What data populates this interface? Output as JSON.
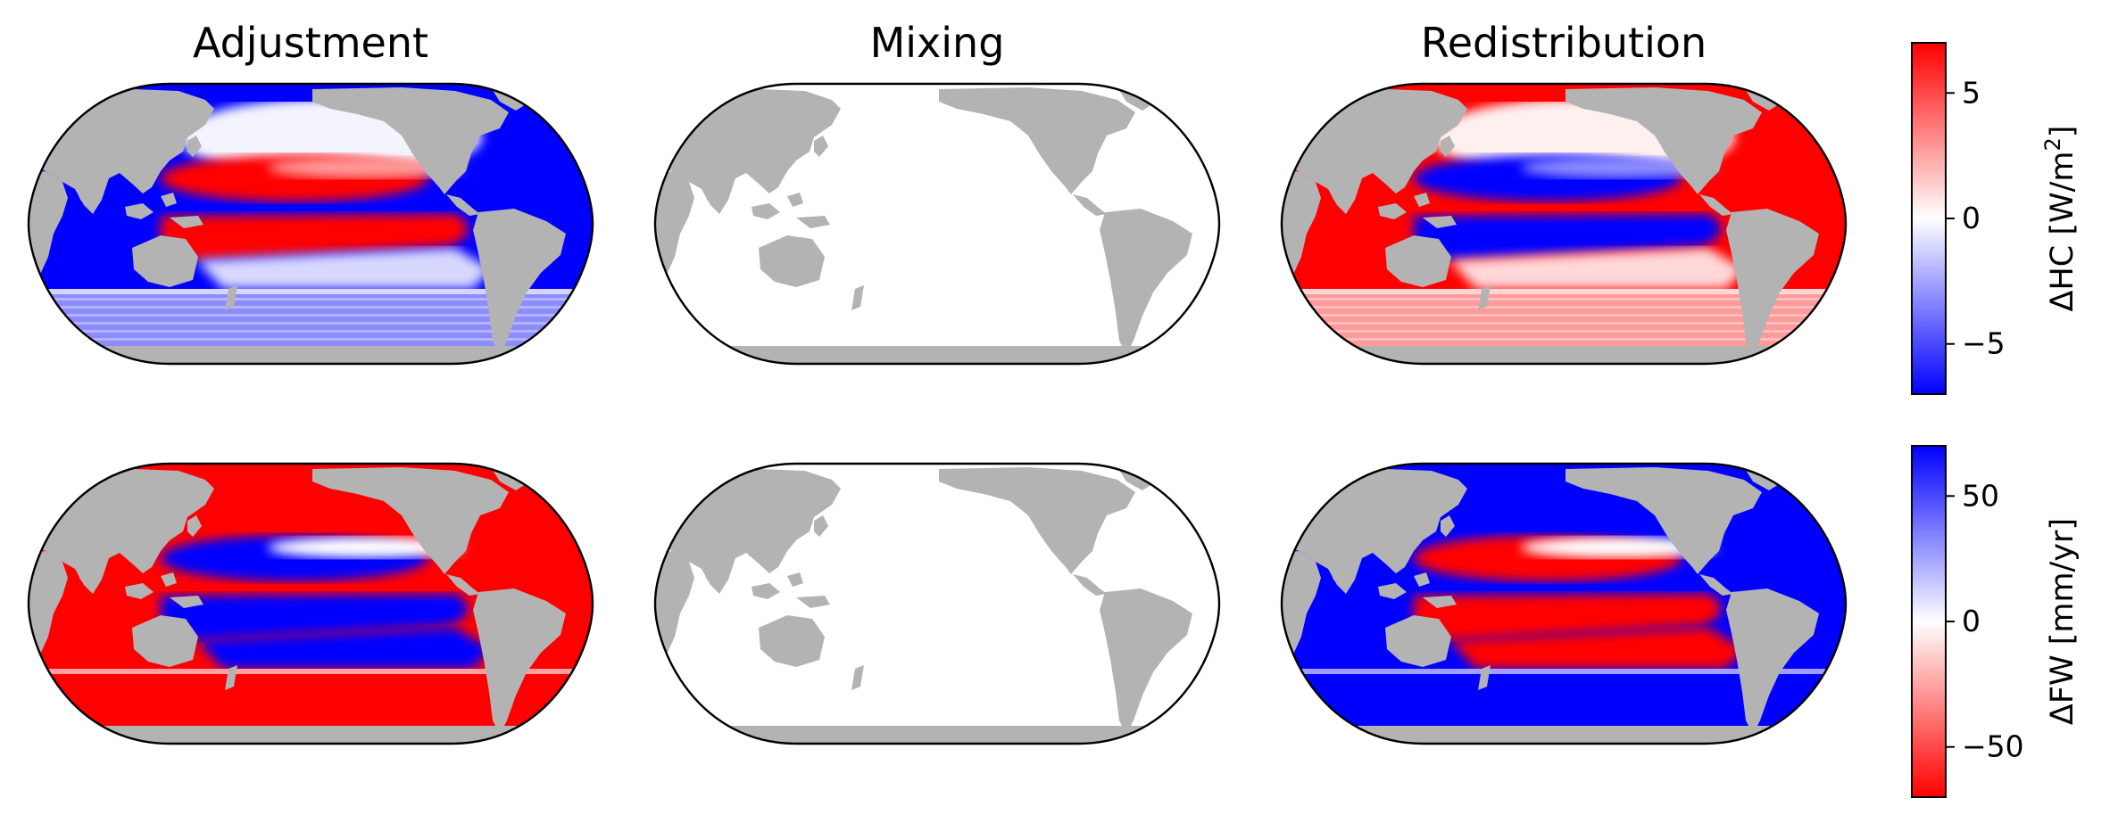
{
  "chart_data": [
    {
      "type": "heatmap",
      "variable": "ΔHC",
      "columns": [
        "Adjustment",
        "Mixing",
        "Redistribution"
      ],
      "colorbar": {
        "label_prefix": "ΔHC [W/m",
        "label_sup": "2",
        "label_suffix": "]",
        "colormap": "bwr",
        "range": [
          -7,
          7
        ],
        "ticks": [
          5,
          0,
          -5
        ],
        "tick_labels": [
          "5",
          "0",
          "−5"
        ]
      },
      "panels": {
        "Adjustment": "SH high latitudes weak negative; North Pacific subtropics positive band over a negative band near 35N; equatorial Pacific strongly positive; Indian and Atlantic strongly negative",
        "Mixing": "near zero everywhere",
        "Redistribution": "mirror of Adjustment: equatorial Pacific strongly negative, Atlantic and Indian strongly positive, Southern Ocean weak positive"
      }
    },
    {
      "type": "heatmap",
      "variable": "ΔFW",
      "columns": [
        "Adjustment",
        "Mixing",
        "Redistribution"
      ],
      "colorbar": {
        "label": "ΔFW [mm/yr]",
        "colormap": "bwr_r",
        "range": [
          -70,
          70
        ],
        "ticks": [
          50,
          0,
          -50
        ],
        "tick_labels": [
          "50",
          "0",
          "−50"
        ]
      },
      "panels": {
        "Adjustment": "Southern Ocean strongly negative; tropical and Indian ocean strongly negative; North Pacific mid latitudes positive; South Pacific subtropics positive",
        "Mixing": "near zero everywhere",
        "Redistribution": "mirror of Adjustment"
      }
    }
  ],
  "colors": {
    "land": "#b3b3b3",
    "positive_hc": "#ff0000",
    "negative_hc": "#0000ff",
    "outline": "#000000"
  }
}
